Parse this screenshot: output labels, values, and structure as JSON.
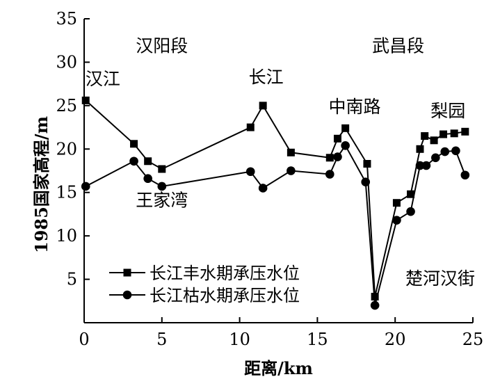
{
  "chart_data": {
    "type": "line",
    "xlabel": "距离/km",
    "ylabel": "1985国家高程/m",
    "xlim": [
      0,
      25
    ],
    "ylim": [
      0,
      35
    ],
    "xticks": [
      0,
      5,
      10,
      15,
      20,
      25
    ],
    "yticks": [
      5,
      10,
      15,
      20,
      25,
      30,
      35
    ],
    "grid": false,
    "legend_position": "lower-left",
    "series": [
      {
        "name": "长江丰水期承压水位",
        "marker": "square",
        "color": "#000000",
        "x": [
          0.1,
          3.2,
          4.1,
          5.0,
          10.7,
          11.5,
          13.3,
          15.8,
          16.3,
          16.8,
          18.2,
          18.7,
          20.1,
          21.0,
          21.6,
          21.9,
          22.5,
          23.1,
          23.8,
          24.5
        ],
        "y": [
          25.6,
          20.6,
          18.6,
          17.7,
          22.5,
          25.0,
          19.6,
          19.0,
          21.2,
          22.4,
          18.3,
          3.0,
          13.8,
          14.8,
          20.0,
          21.5,
          21.0,
          21.7,
          21.8,
          22.0
        ]
      },
      {
        "name": "长江枯水期承压水位",
        "marker": "circle",
        "color": "#000000",
        "x": [
          0.1,
          3.2,
          4.1,
          5.0,
          10.7,
          11.5,
          13.3,
          15.8,
          16.3,
          16.8,
          18.1,
          18.7,
          20.1,
          21.0,
          21.6,
          22.0,
          22.6,
          23.2,
          23.9,
          24.5
        ],
        "y": [
          15.7,
          18.6,
          16.6,
          15.7,
          17.4,
          15.5,
          17.5,
          17.1,
          19.1,
          20.4,
          16.2,
          2.0,
          11.8,
          12.8,
          18.1,
          18.1,
          19.0,
          19.7,
          19.8,
          17.0
        ]
      }
    ],
    "annotations": [
      {
        "text": "汉阳段",
        "x": 5.0,
        "y": 31.2
      },
      {
        "text": "武昌段",
        "x": 20.2,
        "y": 31.2
      },
      {
        "text": "汉江",
        "x": 1.2,
        "y": 27.4
      },
      {
        "text": "长江",
        "x": 11.7,
        "y": 27.6
      },
      {
        "text": "中南路",
        "x": 17.4,
        "y": 24.2
      },
      {
        "text": "梨园",
        "x": 23.4,
        "y": 23.7
      },
      {
        "text": "王家湾",
        "x": 5.0,
        "y": 13.4
      },
      {
        "text": "楚河汉街",
        "x": 22.9,
        "y": 4.4
      }
    ]
  }
}
